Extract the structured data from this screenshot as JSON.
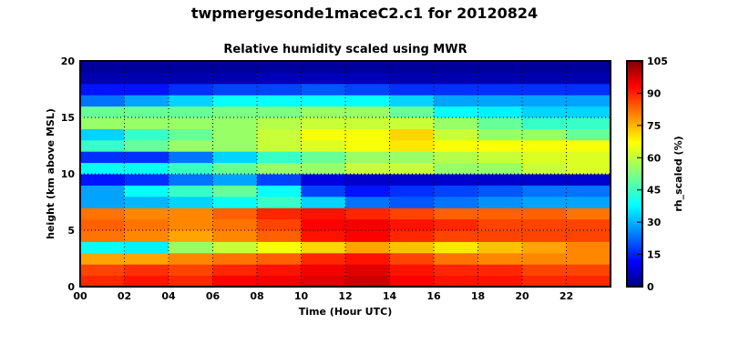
{
  "chart_data": {
    "type": "heatmap",
    "title": "twpmergesonde1maceC2.c1 for 20120824",
    "subtitle": "Relative humidity scaled using MWR",
    "xlabel": "Time (Hour UTC)",
    "ylabel": "height (km above MSL)",
    "colorbar_label": "rh_scaled (%)",
    "colormap": "jet",
    "xlim": [
      0,
      24
    ],
    "ylim": [
      0,
      20
    ],
    "clim": [
      0,
      105
    ],
    "grid": true,
    "x_ticks": [
      0,
      2,
      4,
      6,
      8,
      10,
      12,
      14,
      16,
      18,
      20,
      22
    ],
    "x_tick_labels": [
      "00",
      "02",
      "04",
      "06",
      "08",
      "10",
      "12",
      "14",
      "16",
      "18",
      "20",
      "22"
    ],
    "y_ticks": [
      0,
      5,
      10,
      15,
      20
    ],
    "y_tick_labels": [
      "0",
      "5",
      "10",
      "15",
      "20"
    ],
    "colorbar_ticks": [
      0,
      15,
      30,
      45,
      60,
      75,
      90,
      105
    ],
    "colorbar_tick_labels": [
      "0",
      "15",
      "30",
      "45",
      "60",
      "75",
      "90",
      "105"
    ],
    "x_bin_start_hours": [
      0,
      2,
      4,
      6,
      8,
      10,
      12,
      14,
      16,
      18,
      20,
      22
    ],
    "y_bin_start_km": [
      0,
      1,
      2,
      3,
      4,
      5,
      6,
      7,
      8,
      9,
      10,
      11,
      12,
      13,
      14,
      15,
      16,
      17,
      18,
      19
    ],
    "z": [
      [
        88,
        90,
        88,
        92,
        93,
        95,
        97,
        92,
        90,
        90,
        88,
        88
      ],
      [
        85,
        87,
        85,
        88,
        90,
        93,
        95,
        90,
        88,
        88,
        85,
        85
      ],
      [
        75,
        75,
        78,
        80,
        82,
        88,
        90,
        85,
        80,
        78,
        78,
        78
      ],
      [
        40,
        38,
        55,
        60,
        65,
        70,
        75,
        72,
        68,
        72,
        75,
        78
      ],
      [
        80,
        78,
        75,
        78,
        82,
        90,
        92,
        88,
        85,
        85,
        85,
        85
      ],
      [
        82,
        80,
        78,
        80,
        85,
        92,
        93,
        90,
        88,
        85,
        85,
        85
      ],
      [
        80,
        78,
        78,
        82,
        88,
        90,
        88,
        85,
        82,
        82,
        82,
        80
      ],
      [
        30,
        32,
        35,
        40,
        45,
        35,
        25,
        22,
        25,
        28,
        30,
        30
      ],
      [
        30,
        40,
        45,
        50,
        40,
        20,
        15,
        18,
        20,
        22,
        25,
        25
      ],
      [
        15,
        18,
        25,
        30,
        20,
        10,
        8,
        8,
        8,
        8,
        8,
        8
      ],
      [
        40,
        40,
        45,
        50,
        55,
        55,
        60,
        60,
        55,
        55,
        60,
        62
      ],
      [
        18,
        18,
        25,
        35,
        45,
        50,
        55,
        55,
        58,
        60,
        62,
        62
      ],
      [
        45,
        50,
        55,
        55,
        60,
        62,
        65,
        68,
        65,
        65,
        65,
        65
      ],
      [
        35,
        45,
        50,
        55,
        60,
        65,
        65,
        70,
        60,
        55,
        55,
        50
      ],
      [
        55,
        55,
        55,
        55,
        58,
        60,
        60,
        60,
        55,
        50,
        45,
        45
      ],
      [
        50,
        50,
        50,
        52,
        52,
        55,
        55,
        50,
        40,
        38,
        35,
        35
      ],
      [
        25,
        30,
        35,
        40,
        40,
        40,
        40,
        35,
        30,
        30,
        30,
        30
      ],
      [
        15,
        15,
        18,
        20,
        20,
        22,
        20,
        18,
        18,
        18,
        18,
        18
      ],
      [
        5,
        5,
        5,
        5,
        6,
        6,
        6,
        5,
        5,
        5,
        5,
        5
      ],
      [
        3,
        3,
        3,
        3,
        3,
        3,
        3,
        3,
        3,
        3,
        3,
        3
      ]
    ]
  }
}
